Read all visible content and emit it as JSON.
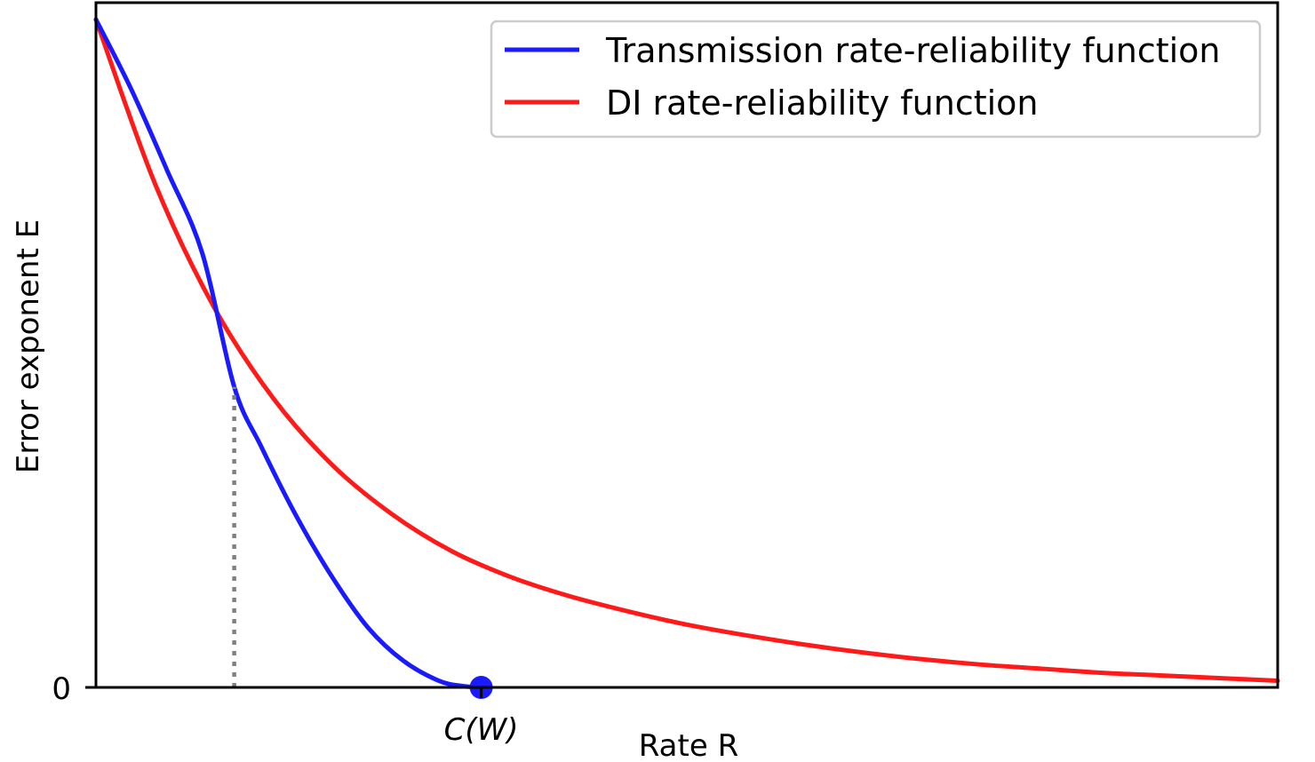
{
  "chart_data": {
    "type": "line",
    "title": "",
    "xlabel": "Rate R",
    "ylabel": "Error exponent E",
    "xlim": [
      0,
      1
    ],
    "ylim": [
      0,
      1
    ],
    "y_tick_labels": [
      "0"
    ],
    "x_tick_labels": [
      "C(W)"
    ],
    "capacity_x": 0.326,
    "critical_rate_x": 0.117,
    "critical_rate_y": 0.45,
    "legend_position": "top-right",
    "series": [
      {
        "name": "Transmission rate-reliability function",
        "color": "#1a1aff",
        "x": [
          0.0,
          0.03,
          0.06,
          0.09,
          0.117,
          0.14,
          0.17,
          0.2,
          0.23,
          0.26,
          0.29,
          0.31,
          0.326
        ],
        "y": [
          1.0,
          0.895,
          0.775,
          0.65,
          0.45,
          0.36,
          0.255,
          0.165,
          0.09,
          0.04,
          0.01,
          0.002,
          0.0
        ]
      },
      {
        "name": "DI rate-reliability function",
        "color": "#ff1a1a",
        "x": [
          0.0,
          0.05,
          0.1,
          0.15,
          0.2,
          0.25,
          0.3,
          0.35,
          0.4,
          0.45,
          0.5,
          0.55,
          0.6,
          0.65,
          0.7,
          0.75,
          0.8,
          0.85,
          0.9,
          0.95,
          1.0
        ],
        "y": [
          1.0,
          0.754,
          0.569,
          0.433,
          0.333,
          0.26,
          0.205,
          0.166,
          0.137,
          0.114,
          0.094,
          0.078,
          0.064,
          0.052,
          0.042,
          0.034,
          0.028,
          0.022,
          0.018,
          0.014,
          0.01
        ]
      }
    ],
    "marker": {
      "x": 0.326,
      "y": 0.0,
      "color": "#1a1aff",
      "label": "C(W)"
    },
    "dotted_line": {
      "x": 0.117,
      "y_from": 0.0,
      "y_to": 0.45,
      "color": "#808080"
    }
  }
}
